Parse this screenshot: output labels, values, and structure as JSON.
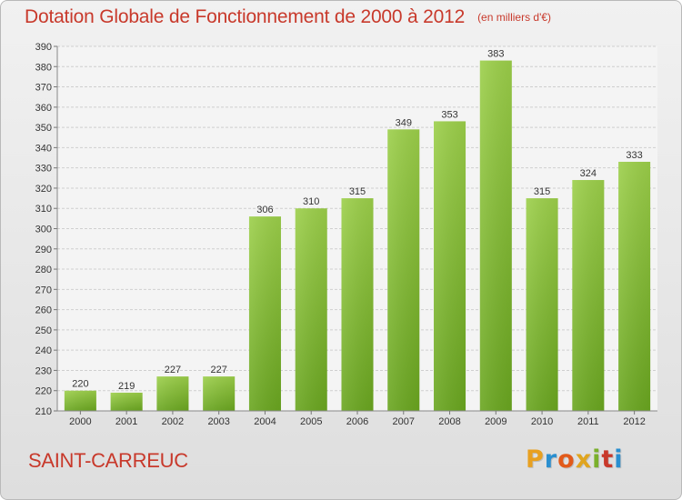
{
  "title": "Dotation Globale de Fonctionnement de 2000 à 2012",
  "unit": "(en milliers d'€)",
  "city": "SAINT-CARREUC",
  "logo": {
    "letters": [
      "P",
      "r",
      "o",
      "x",
      "i",
      "t",
      "i"
    ],
    "colors": [
      "#e8a020",
      "#2a8fd0",
      "#e25a1a",
      "#e0a51f",
      "#7ab02c",
      "#c8392b",
      "#2a8fd0"
    ]
  },
  "colors": {
    "bar_light": "#9ccf4a",
    "bar_dark": "#6aa620",
    "title": "#c8392b"
  },
  "chart_data": {
    "type": "bar",
    "title": "Dotation Globale de Fonctionnement de 2000 à 2012",
    "subtitle": "(en milliers d'€)",
    "categories": [
      "2000",
      "2001",
      "2002",
      "2003",
      "2004",
      "2005",
      "2006",
      "2007",
      "2008",
      "2009",
      "2010",
      "2011",
      "2012"
    ],
    "values": [
      220,
      219,
      227,
      227,
      306,
      310,
      315,
      349,
      353,
      383,
      315,
      324,
      333
    ],
    "ylim": [
      210,
      390
    ],
    "yticks": [
      210,
      220,
      230,
      240,
      250,
      260,
      270,
      280,
      290,
      300,
      310,
      320,
      330,
      340,
      350,
      360,
      370,
      380,
      390
    ],
    "grid": true,
    "data_labels": true,
    "xlabel": "",
    "ylabel": ""
  }
}
